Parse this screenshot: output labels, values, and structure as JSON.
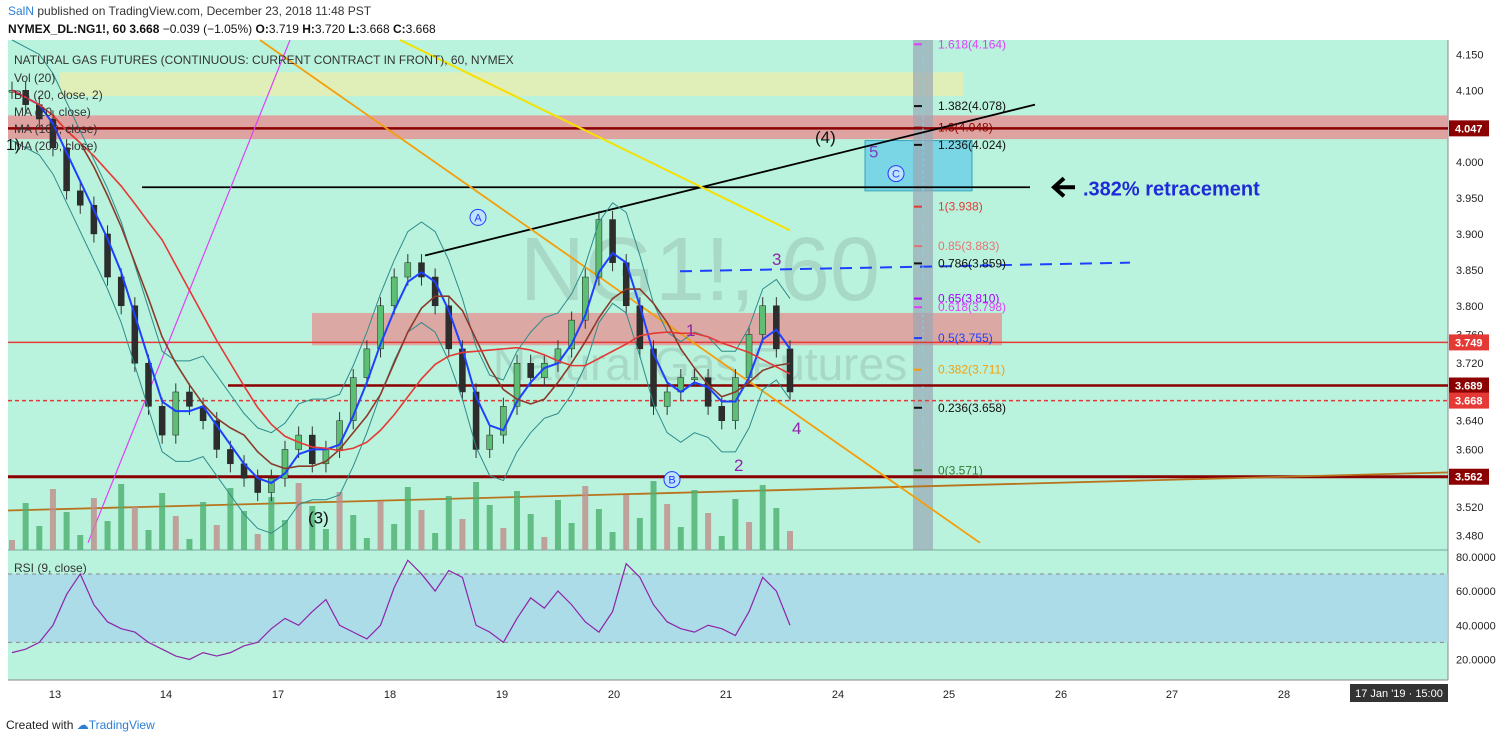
{
  "header": {
    "author": "SalN",
    "published": " published on TradingView.com, December 23, 2018 11:48 PST",
    "symbol": "NYMEX_DL:NG1!, 60",
    "last": "3.668",
    "change": "−0.039 (−1.05%)",
    "o_label": "O:",
    "o": "3.719",
    "h_label": "H:",
    "h": "3.720",
    "l_label": "L:",
    "l": "3.668",
    "c_label": "C:",
    "c": "3.668"
  },
  "footer": {
    "created": "Created with",
    "brand": "TradingView"
  },
  "chart_data": {
    "type": "line",
    "title": "NATURAL GAS FUTURES (CONTINUOUS: CURRENT CONTRACT IN FRONT), 60, NYMEX",
    "watermark_symbol": "NG1!, 60",
    "watermark_name": "Natural Gas Futures",
    "indicators": [
      "Vol (20)",
      "BB (20, close, 2)",
      "MA (20, close)",
      "MA (100, close)",
      "MA (200, close)"
    ],
    "x_ticks": [
      "13",
      "14",
      "17",
      "18",
      "19",
      "20",
      "21",
      "24",
      "25",
      "26",
      "27",
      "28"
    ],
    "x_cursor_label": "17 Jan '19 · 15:00",
    "ylim": [
      3.46,
      4.17
    ],
    "y_ticks": [
      3.48,
      3.52,
      3.56,
      3.6,
      3.64,
      3.68,
      3.72,
      3.76,
      3.8,
      3.85,
      3.9,
      3.95,
      4.0,
      4.05,
      4.1,
      4.15
    ],
    "y_tick_labels": [
      "3.480",
      "3.520",
      "3.560",
      "3.600",
      "3.640",
      "3.680",
      "3.720",
      "3.760",
      "3.800",
      "3.850",
      "3.900",
      "3.950",
      "4.000",
      "4.050",
      "4.100",
      "4.150"
    ],
    "price_labels": [
      {
        "value": 4.047,
        "text": "4.047",
        "color": "#8b0000"
      },
      {
        "value": 3.749,
        "text": "3.749",
        "color": "#e53935"
      },
      {
        "value": 3.689,
        "text": "3.689",
        "color": "#8b0000"
      },
      {
        "value": 3.668,
        "text": "3.668",
        "color": "#e53935"
      },
      {
        "value": 3.562,
        "text": "3.562",
        "color": "#8b0000"
      }
    ],
    "close_series": [
      4.1,
      4.08,
      4.06,
      4.02,
      3.96,
      3.94,
      3.9,
      3.84,
      3.8,
      3.72,
      3.66,
      3.62,
      3.68,
      3.66,
      3.64,
      3.6,
      3.58,
      3.56,
      3.54,
      3.56,
      3.6,
      3.62,
      3.58,
      3.6,
      3.64,
      3.7,
      3.74,
      3.8,
      3.84,
      3.86,
      3.84,
      3.8,
      3.74,
      3.68,
      3.6,
      3.62,
      3.66,
      3.72,
      3.7,
      3.72,
      3.74,
      3.78,
      3.84,
      3.92,
      3.86,
      3.8,
      3.74,
      3.66,
      3.68,
      3.7,
      3.7,
      3.66,
      3.64,
      3.7,
      3.76,
      3.8,
      3.74,
      3.68
    ],
    "fib_levels": [
      {
        "ratio": "1.618",
        "value": 4.164,
        "text": "1.618(4.164)",
        "color": "#e040fb"
      },
      {
        "ratio": "1.382",
        "value": 4.078,
        "text": "1.382(4.078)",
        "color": "#111111"
      },
      {
        "ratio": "1.3",
        "value": 4.048,
        "text": "1.3(4.048)",
        "color": "#8b0000"
      },
      {
        "ratio": "1.236",
        "value": 4.024,
        "text": "1.236(4.024)",
        "color": "#111111"
      },
      {
        "ratio": "1",
        "value": 3.938,
        "text": "1(3.938)",
        "color": "#e53935"
      },
      {
        "ratio": "0.85",
        "value": 3.883,
        "text": "0.85(3.883)",
        "color": "#e57373"
      },
      {
        "ratio": "0.786",
        "value": 3.859,
        "text": "0.786(3.859)",
        "color": "#111111"
      },
      {
        "ratio": "0.65",
        "value": 3.81,
        "text": "0.65(3.810)",
        "color": "#aa00ff"
      },
      {
        "ratio": "0.618",
        "value": 3.798,
        "text": "0.618(3.798)",
        "color": "#e040fb"
      },
      {
        "ratio": "0.5",
        "value": 3.755,
        "text": "0.5(3.755)",
        "color": "#1e40ff"
      },
      {
        "ratio": "0.382",
        "value": 3.711,
        "text": "0.382(3.711)",
        "color": "#f59e0b"
      },
      {
        "ratio": "0.236",
        "value": 3.658,
        "text": "0.236(3.658)",
        "color": "#111111"
      },
      {
        "ratio": "0",
        "value": 3.571,
        "text": "0(3.571)",
        "color": "#2e7d32"
      }
    ],
    "annotations": {
      "retracement": ".382% retracement",
      "wave_4_big": "(4)",
      "wave_3_big": "(3)",
      "wave_1_small": "1)",
      "wave_a": "A",
      "wave_b": "B",
      "wave_c": "C",
      "wave_1": "1",
      "wave_2": "2",
      "wave_3": "3",
      "wave_4": "4",
      "wave_5": "5"
    },
    "rsi": {
      "label": "RSI (9, close)",
      "ylim": [
        8,
        84
      ],
      "y_ticks": [
        "20.0000",
        "40.0000",
        "60.0000",
        "80.0000"
      ],
      "band": [
        30,
        70
      ],
      "values": [
        24,
        26,
        30,
        40,
        58,
        70,
        52,
        42,
        38,
        36,
        30,
        26,
        22,
        20,
        24,
        22,
        24,
        28,
        30,
        38,
        44,
        40,
        48,
        55,
        40,
        36,
        32,
        40,
        62,
        78,
        70,
        60,
        72,
        68,
        40,
        36,
        30,
        44,
        56,
        50,
        60,
        52,
        42,
        36,
        48,
        76,
        68,
        52,
        42,
        38,
        36,
        40,
        38,
        34,
        48,
        68,
        60,
        40
      ]
    }
  }
}
